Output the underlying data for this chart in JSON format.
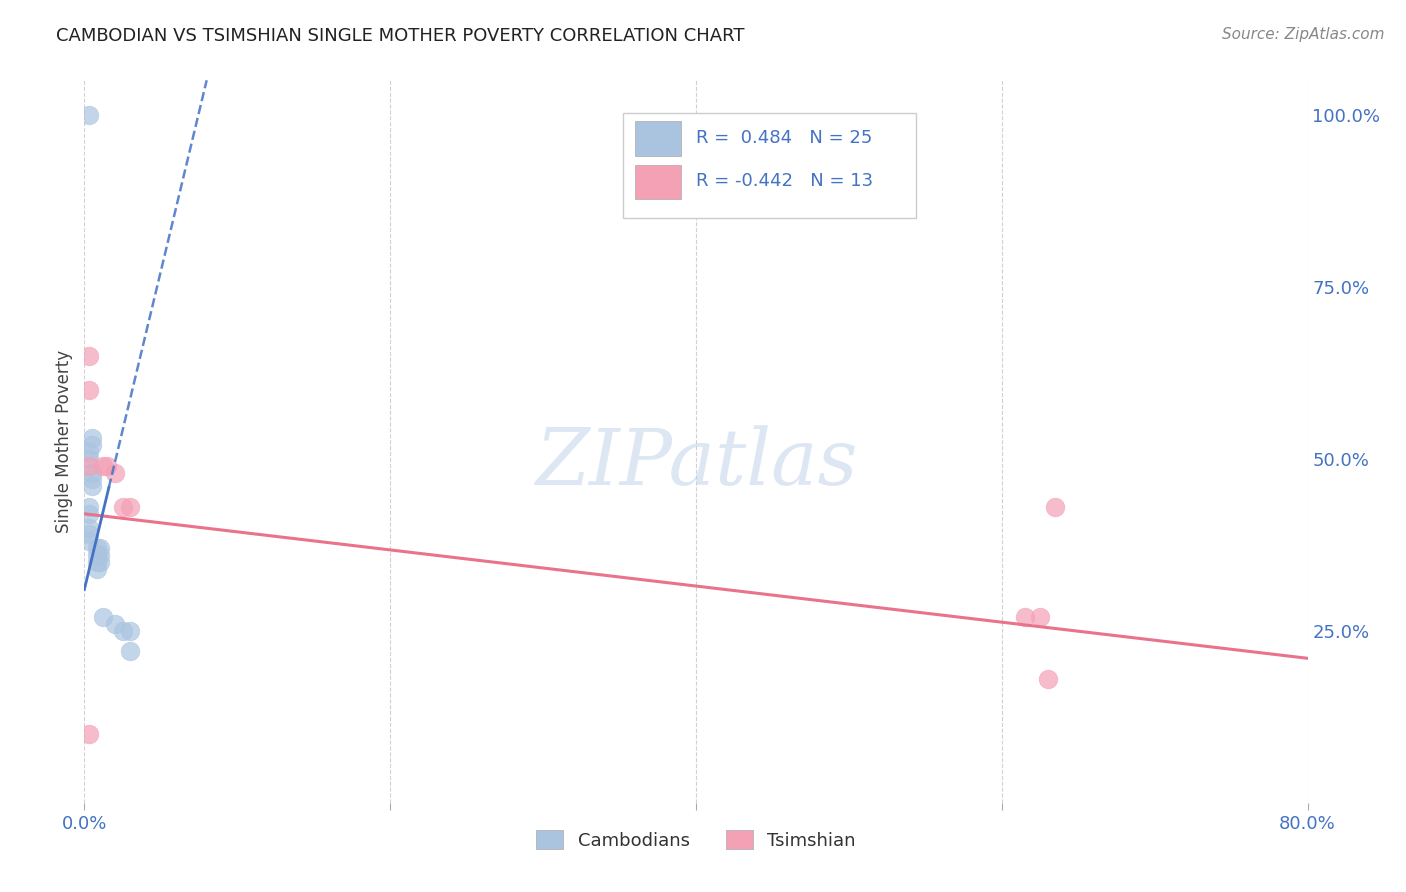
{
  "title": "CAMBODIAN VS TSIMSHIAN SINGLE MOTHER POVERTY CORRELATION CHART",
  "source": "Source: ZipAtlas.com",
  "ylabel": "Single Mother Poverty",
  "xlim": [
    0.0,
    0.8
  ],
  "ylim": [
    0.0,
    1.05
  ],
  "ytick_labels_right": [
    "100.0%",
    "75.0%",
    "50.0%",
    "25.0%"
  ],
  "ytick_positions_right": [
    1.0,
    0.75,
    0.5,
    0.25
  ],
  "cambodian_R": 0.484,
  "cambodian_N": 25,
  "tsimshian_R": -0.442,
  "tsimshian_N": 13,
  "cambodian_color": "#aac4e0",
  "tsimshian_color": "#f4a0b5",
  "cambodian_line_color": "#4472c4",
  "tsimshian_line_color": "#e8738a",
  "legend_R_color": "#4472c4",
  "background_color": "#ffffff",
  "grid_color": "#cccccc",
  "cambodian_x": [
    0.003,
    0.003,
    0.003,
    0.003,
    0.003,
    0.003,
    0.003,
    0.003,
    0.005,
    0.005,
    0.005,
    0.005,
    0.005,
    0.008,
    0.008,
    0.008,
    0.008,
    0.01,
    0.01,
    0.01,
    0.012,
    0.02,
    0.025,
    0.03,
    0.03
  ],
  "cambodian_y": [
    1.0,
    0.51,
    0.5,
    0.43,
    0.42,
    0.4,
    0.39,
    0.38,
    0.53,
    0.52,
    0.48,
    0.47,
    0.46,
    0.37,
    0.36,
    0.35,
    0.34,
    0.37,
    0.36,
    0.35,
    0.27,
    0.26,
    0.25,
    0.25,
    0.22
  ],
  "tsimshian_x": [
    0.003,
    0.003,
    0.003,
    0.003,
    0.012,
    0.015,
    0.02,
    0.025,
    0.03,
    0.615,
    0.625,
    0.63,
    0.635
  ],
  "tsimshian_y": [
    0.65,
    0.6,
    0.49,
    0.1,
    0.49,
    0.49,
    0.48,
    0.43,
    0.43,
    0.27,
    0.27,
    0.18,
    0.43
  ],
  "cam_line_x0": 0.0,
  "cam_line_y0": 0.31,
  "cam_line_x1": 0.08,
  "cam_line_y1": 1.05,
  "tsi_line_x0": 0.0,
  "tsi_line_y0": 0.42,
  "tsi_line_x1": 0.8,
  "tsi_line_y1": 0.21
}
